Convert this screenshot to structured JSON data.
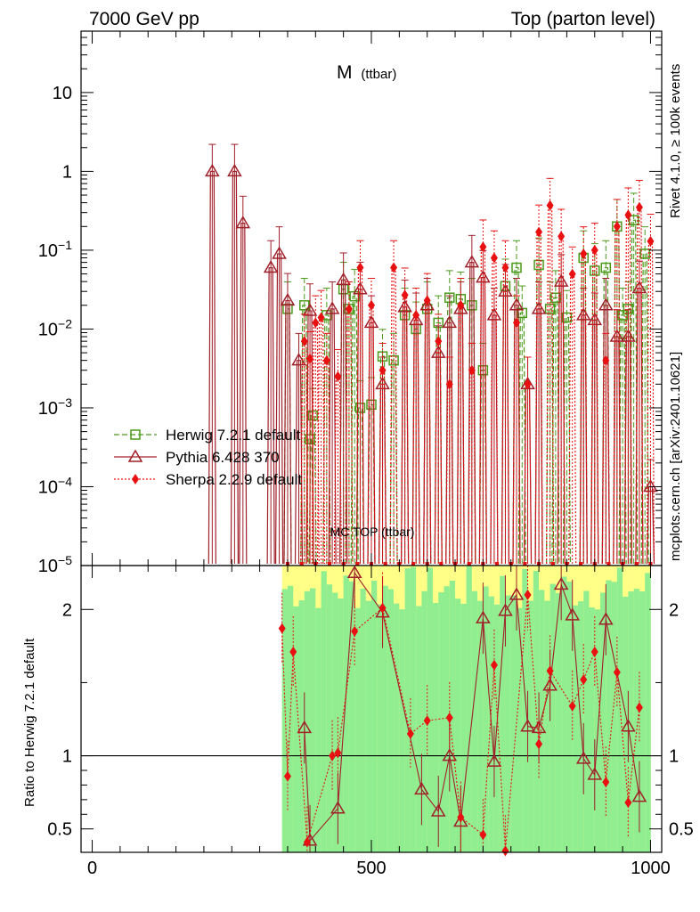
{
  "header": {
    "left": "7000 GeV pp",
    "right": "Top (parton level)"
  },
  "side_labels": {
    "rivet": "Rivet 4.1.0, ≥ 100k events",
    "mcplots": "mcplots.cern.ch [arXiv:2401.10621]"
  },
  "watermark": "MC  TOP  (ttbar)",
  "chart_data": [
    {
      "type": "line",
      "scale": "log",
      "title_main": "M",
      "title_sub": "(ttbar)",
      "xlim": [
        -20,
        1020
      ],
      "ylim": [
        1e-05,
        60
      ],
      "y_ticks": [
        {
          "value": 10,
          "base": "10",
          "exp": ""
        },
        {
          "value": 1,
          "base": "1",
          "exp": ""
        },
        {
          "value": 0.1,
          "base": "10",
          "exp": "−1"
        },
        {
          "value": 0.01,
          "base": "10",
          "exp": "−2"
        },
        {
          "value": 0.001,
          "base": "10",
          "exp": "−3"
        },
        {
          "value": 0.0001,
          "base": "10",
          "exp": "−4"
        },
        {
          "value": 1e-05,
          "base": "10",
          "exp": "−5"
        }
      ],
      "legend": [
        {
          "label": "Herwig 7.2.1 default",
          "color": "#4a9a1a",
          "marker": "square",
          "dash": "6,3"
        },
        {
          "label": "Pythia 6.428 370",
          "color": "#a0202a",
          "marker": "triangle",
          "dash": ""
        },
        {
          "label": "Sherpa 2.2.9 default",
          "color": "#e81010",
          "marker": "diamond",
          "dash": "2,2"
        }
      ],
      "series": [
        {
          "name": "Herwig 7.2.1 default",
          "points": [
            [
              350,
              0.018
            ],
            [
              380,
              0.02
            ],
            [
              390,
              0.0004
            ],
            [
              395,
              0.0008
            ],
            [
              420,
              0.015
            ],
            [
              450,
              0.032
            ],
            [
              460,
              0.018
            ],
            [
              470,
              0.026
            ],
            [
              480,
              0.001
            ],
            [
              500,
              0.0011
            ],
            [
              520,
              0.0045
            ],
            [
              540,
              0.004
            ],
            [
              560,
              0.015
            ],
            [
              580,
              0.01
            ],
            [
              600,
              0.018
            ],
            [
              620,
              0.012
            ],
            [
              640,
              0.025
            ],
            [
              660,
              0.024
            ],
            [
              680,
              0.02
            ],
            [
              700,
              0.003
            ],
            [
              740,
              0.035
            ],
            [
              760,
              0.06
            ],
            [
              770,
              0.016
            ],
            [
              800,
              0.065
            ],
            [
              820,
              0.018
            ],
            [
              830,
              0.025
            ],
            [
              850,
              0.014
            ],
            [
              880,
              0.08
            ],
            [
              900,
              0.055
            ],
            [
              920,
              0.06
            ],
            [
              940,
              0.2
            ],
            [
              950,
              0.015
            ],
            [
              960,
              0.018
            ],
            [
              970,
              0.24
            ],
            [
              990,
              0.09
            ]
          ]
        },
        {
          "name": "Pythia 6.428 370",
          "points": [
            [
              215,
              1.0
            ],
            [
              255,
              1.0
            ],
            [
              270,
              0.22
            ],
            [
              320,
              0.06
            ],
            [
              335,
              0.09
            ],
            [
              350,
              0.023
            ],
            [
              370,
              0.004
            ],
            [
              390,
              0.017
            ],
            [
              430,
              0.018
            ],
            [
              450,
              0.042
            ],
            [
              480,
              0.032
            ],
            [
              500,
              0.012
            ],
            [
              520,
              0.002
            ],
            [
              560,
              0.019
            ],
            [
              580,
              0.013
            ],
            [
              600,
              0.02
            ],
            [
              620,
              0.005
            ],
            [
              640,
              0.012
            ],
            [
              660,
              0.018
            ],
            [
              680,
              0.07
            ],
            [
              700,
              0.045
            ],
            [
              720,
              0.015
            ],
            [
              740,
              0.03
            ],
            [
              760,
              0.02
            ],
            [
              780,
              0.002
            ],
            [
              800,
              0.018
            ],
            [
              840,
              0.04
            ],
            [
              880,
              0.015
            ],
            [
              900,
              0.013
            ],
            [
              920,
              0.02
            ],
            [
              940,
              0.008
            ],
            [
              960,
              0.008
            ],
            [
              980,
              0.033
            ],
            [
              1000,
              0.0001
            ]
          ]
        },
        {
          "name": "Sherpa 2.2.9 default",
          "points": [
            [
              380,
              0.007
            ],
            [
              390,
              0.0042
            ],
            [
              400,
              0.012
            ],
            [
              410,
              0.014
            ],
            [
              420,
              0.004
            ],
            [
              440,
              0.0025
            ],
            [
              460,
              0.018
            ],
            [
              480,
              0.06
            ],
            [
              500,
              0.02
            ],
            [
              520,
              0.003
            ],
            [
              540,
              0.06
            ],
            [
              560,
              0.027
            ],
            [
              580,
              0.015
            ],
            [
              600,
              0.023
            ],
            [
              620,
              0.007
            ],
            [
              640,
              0.002
            ],
            [
              660,
              0.02
            ],
            [
              680,
              0.003
            ],
            [
              700,
              0.11
            ],
            [
              720,
              0.08
            ],
            [
              740,
              0.06
            ],
            [
              760,
              0.012
            ],
            [
              780,
              0.002
            ],
            [
              800,
              0.17
            ],
            [
              820,
              0.37
            ],
            [
              840,
              0.15
            ],
            [
              860,
              0.05
            ],
            [
              880,
              0.09
            ],
            [
              900,
              0.1
            ],
            [
              920,
              0.004
            ],
            [
              940,
              0.2
            ],
            [
              960,
              0.28
            ],
            [
              980,
              0.35
            ],
            [
              1000,
              0.13
            ]
          ]
        }
      ]
    },
    {
      "type": "line",
      "scale": "linear",
      "ylabel": "Ratio to Herwig 7.2.1 default",
      "xlim": [
        -20,
        1020
      ],
      "ylim": [
        0.34,
        2.3
      ],
      "x_ticks": [
        "0",
        "500",
        "1000"
      ],
      "x_tick_values": [
        0,
        500,
        1000
      ],
      "y_ticks": [
        "0.5",
        "1",
        "2"
      ],
      "y_tick_values": [
        0.5,
        1,
        2
      ],
      "reference_line": 1,
      "series": [
        {
          "name": "Pythia 6.428 370",
          "points": [
            [
              380,
              1.19
            ],
            [
              390,
              0.42
            ],
            [
              440,
              0.64
            ],
            [
              470,
              2.25
            ],
            [
              520,
              1.98
            ],
            [
              590,
              0.77
            ],
            [
              620,
              0.62
            ],
            [
              640,
              1.0
            ],
            [
              660,
              0.55
            ],
            [
              700,
              1.94
            ],
            [
              720,
              0.96
            ],
            [
              740,
              1.99
            ],
            [
              760,
              2.1
            ],
            [
              780,
              1.2
            ],
            [
              800,
              1.19
            ],
            [
              820,
              1.48
            ],
            [
              840,
              2.17
            ],
            [
              860,
              1.96
            ],
            [
              880,
              0.98
            ],
            [
              900,
              0.87
            ],
            [
              920,
              1.93
            ],
            [
              960,
              1.2
            ],
            [
              980,
              0.72
            ]
          ]
        },
        {
          "name": "Sherpa 2.2.9 default",
          "points": [
            [
              340,
              1.87
            ],
            [
              350,
              0.86
            ],
            [
              360,
              1.71
            ],
            [
              385,
              0.41
            ],
            [
              430,
              1.0
            ],
            [
              440,
              1.02
            ],
            [
              470,
              1.85
            ],
            [
              520,
              2.01
            ],
            [
              570,
              1.15
            ],
            [
              600,
              1.24
            ],
            [
              640,
              1.26
            ],
            [
              660,
              0.58
            ],
            [
              700,
              0.46
            ],
            [
              720,
              1.62
            ],
            [
              740,
              0.35
            ],
            [
              780,
              2.1
            ],
            [
              800,
              1.08
            ],
            [
              820,
              1.58
            ],
            [
              860,
              1.34
            ],
            [
              880,
              1.52
            ],
            [
              900,
              1.71
            ],
            [
              920,
              0.82
            ],
            [
              940,
              1.57
            ],
            [
              960,
              0.68
            ],
            [
              980,
              1.33
            ]
          ]
        }
      ]
    }
  ]
}
